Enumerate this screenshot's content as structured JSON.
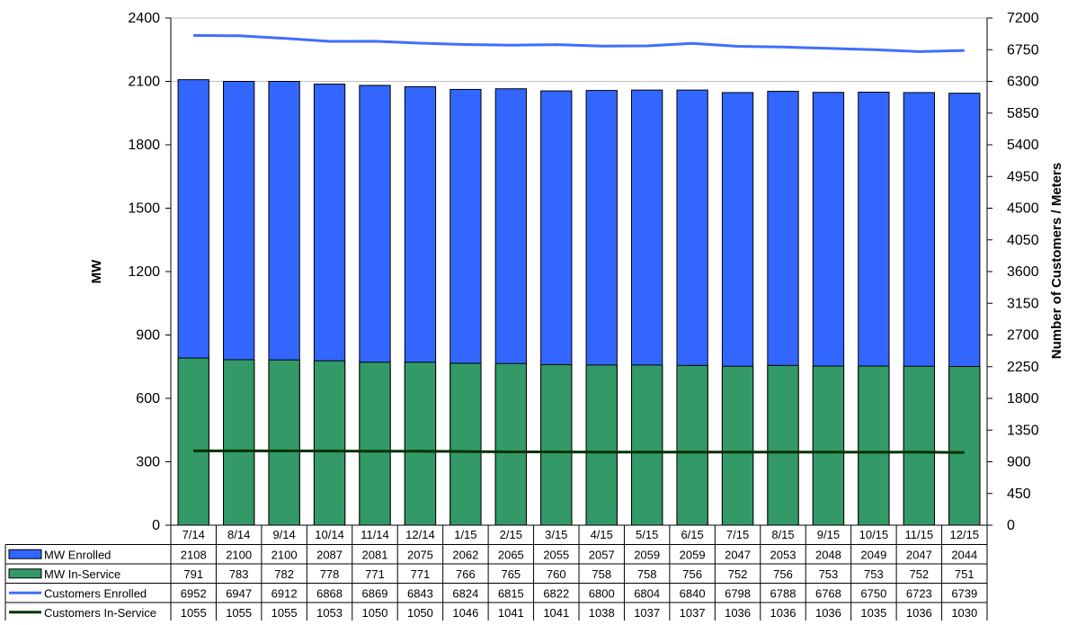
{
  "chart_data": {
    "type": "bar",
    "stacked": false,
    "ylabel_left": "MW",
    "ylabel_right": "Number of Customers / Meters",
    "ylim_left": [
      0,
      2400
    ],
    "ylim_right": [
      0,
      7200
    ],
    "yticks_left": [
      0,
      300,
      600,
      900,
      1200,
      1500,
      1800,
      2100,
      2400
    ],
    "yticks_right": [
      0,
      450,
      900,
      1350,
      1800,
      2250,
      2700,
      3150,
      3600,
      4050,
      4500,
      4950,
      5400,
      5850,
      6300,
      6750,
      7200
    ],
    "grid": "horizontal at 2100 and 2400 only",
    "legend_placement": "data table below chart",
    "categories": [
      "7/14",
      "8/14",
      "9/14",
      "10/14",
      "11/14",
      "12/14",
      "1/15",
      "2/15",
      "3/15",
      "4/15",
      "5/15",
      "6/15",
      "7/15",
      "8/15",
      "9/15",
      "10/15",
      "11/15",
      "12/15"
    ],
    "series": [
      {
        "name": "MW Enrolled",
        "kind": "bar",
        "axis": "left",
        "color": "#3366FF",
        "values": [
          2108,
          2100,
          2100,
          2087,
          2081,
          2075,
          2062,
          2065,
          2055,
          2057,
          2059,
          2059,
          2047,
          2053,
          2048,
          2049,
          2047,
          2044
        ]
      },
      {
        "name": "MW In-Service",
        "kind": "bar",
        "axis": "left",
        "color": "#339966",
        "values": [
          791,
          783,
          782,
          778,
          771,
          771,
          766,
          765,
          760,
          758,
          758,
          756,
          752,
          756,
          753,
          753,
          752,
          751
        ]
      },
      {
        "name": "Customers Enrolled",
        "kind": "line",
        "axis": "right",
        "color": "#3F6FFF",
        "values": [
          6952,
          6947,
          6912,
          6868,
          6869,
          6843,
          6824,
          6815,
          6822,
          6800,
          6804,
          6840,
          6798,
          6788,
          6768,
          6750,
          6723,
          6739
        ]
      },
      {
        "name": "Customers In-Service",
        "kind": "line",
        "axis": "right",
        "color": "#003300",
        "values": [
          1055,
          1055,
          1055,
          1053,
          1050,
          1050,
          1046,
          1041,
          1041,
          1038,
          1037,
          1037,
          1036,
          1036,
          1036,
          1035,
          1036,
          1030
        ]
      }
    ]
  }
}
